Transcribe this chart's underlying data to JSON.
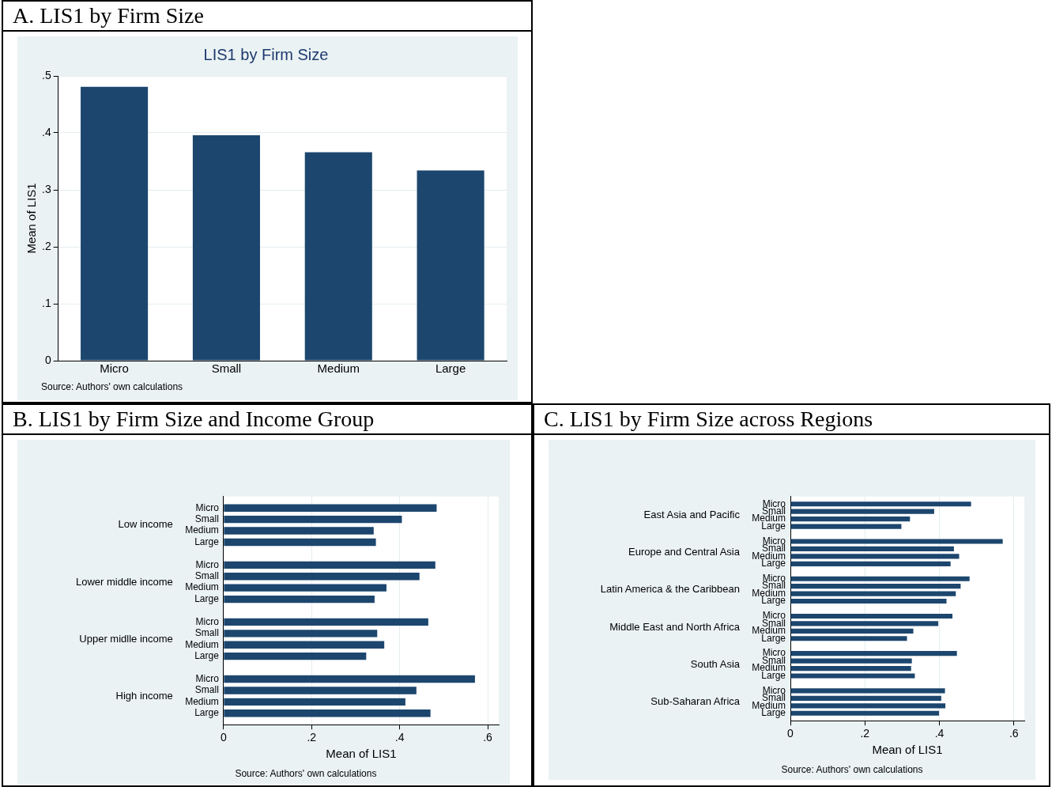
{
  "chart_data": [
    {
      "type": "bar",
      "title": "A. LIS1 by Firm Size",
      "subtitle": "LIS1 by Firm Size",
      "ylabel": "Mean of LIS1",
      "categories": [
        "Micro",
        "Small",
        "Medium",
        "Large"
      ],
      "values": [
        0.481,
        0.396,
        0.366,
        0.334
      ],
      "color": "#1c466e",
      "ylim": [
        0,
        0.5
      ],
      "yticks": [
        0,
        {
          "value": 0.1,
          "label": ".1"
        },
        {
          "value": 0.2,
          "label": ".2"
        },
        {
          "value": 0.3,
          "label": ".3"
        },
        {
          "value": 0.4,
          "label": ".4"
        },
        {
          "value": 0.5,
          "label": ".5"
        }
      ],
      "grid": "y",
      "annotations": [
        "Source: Authors' own calculations"
      ]
    },
    {
      "type": "bar",
      "orientation": "horizontal",
      "title": "B. LIS1 by Firm Size and Income Group",
      "xlabel": "Mean of LIS1",
      "categories": [
        "Low income",
        "Lower middle income",
        "Upper midlle income",
        "High income"
      ],
      "series": [
        {
          "name": "Micro",
          "color": "#1c466e",
          "values": [
            0.484,
            0.481,
            0.465,
            0.571
          ]
        },
        {
          "name": "Small",
          "color": "#1c466e",
          "values": [
            0.405,
            0.445,
            0.349,
            0.438
          ]
        },
        {
          "name": "Medium",
          "color": "#1c466e",
          "values": [
            0.341,
            0.37,
            0.365,
            0.413
          ]
        },
        {
          "name": "Large",
          "color": "#1c466e",
          "values": [
            0.346,
            0.343,
            0.324,
            0.47
          ]
        }
      ],
      "xlim": [
        0,
        0.625
      ],
      "xticks": [
        0,
        {
          "value": 0.2,
          "label": ".2"
        },
        {
          "value": 0.4,
          "label": ".4"
        },
        {
          "value": 0.6,
          "label": ".6"
        }
      ],
      "grid": "x",
      "annotations": [
        "Source: Authors' own calculations"
      ]
    },
    {
      "type": "bar",
      "orientation": "horizontal",
      "title": "C. LIS1 by Firm Size across Regions",
      "xlabel": "Mean of LIS1",
      "categories": [
        "East Asia and Pacific",
        "Europe and Central Asia",
        "Latin America & the Caribbean",
        "Middle East and North Africa",
        "South Asia",
        "Sub-Saharan Africa"
      ],
      "series": [
        {
          "name": "Micro",
          "color": "#1c466e",
          "values": [
            0.485,
            0.57,
            0.481,
            0.435,
            0.447,
            0.415
          ]
        },
        {
          "name": "Small",
          "color": "#1c466e",
          "values": [
            0.386,
            0.439,
            0.457,
            0.397,
            0.326,
            0.405
          ]
        },
        {
          "name": "Medium",
          "color": "#1c466e",
          "values": [
            0.321,
            0.453,
            0.444,
            0.33,
            0.324,
            0.416
          ]
        },
        {
          "name": "Large",
          "color": "#1c466e",
          "values": [
            0.298,
            0.43,
            0.419,
            0.313,
            0.334,
            0.399
          ]
        }
      ],
      "xlim": [
        0,
        0.628
      ],
      "xticks": [
        0,
        {
          "value": 0.2,
          "label": ".2"
        },
        {
          "value": 0.4,
          "label": ".4"
        },
        {
          "value": 0.6,
          "label": ".6"
        }
      ],
      "grid": "x",
      "annotations": [
        "Source: Authors' own calculations"
      ]
    }
  ]
}
